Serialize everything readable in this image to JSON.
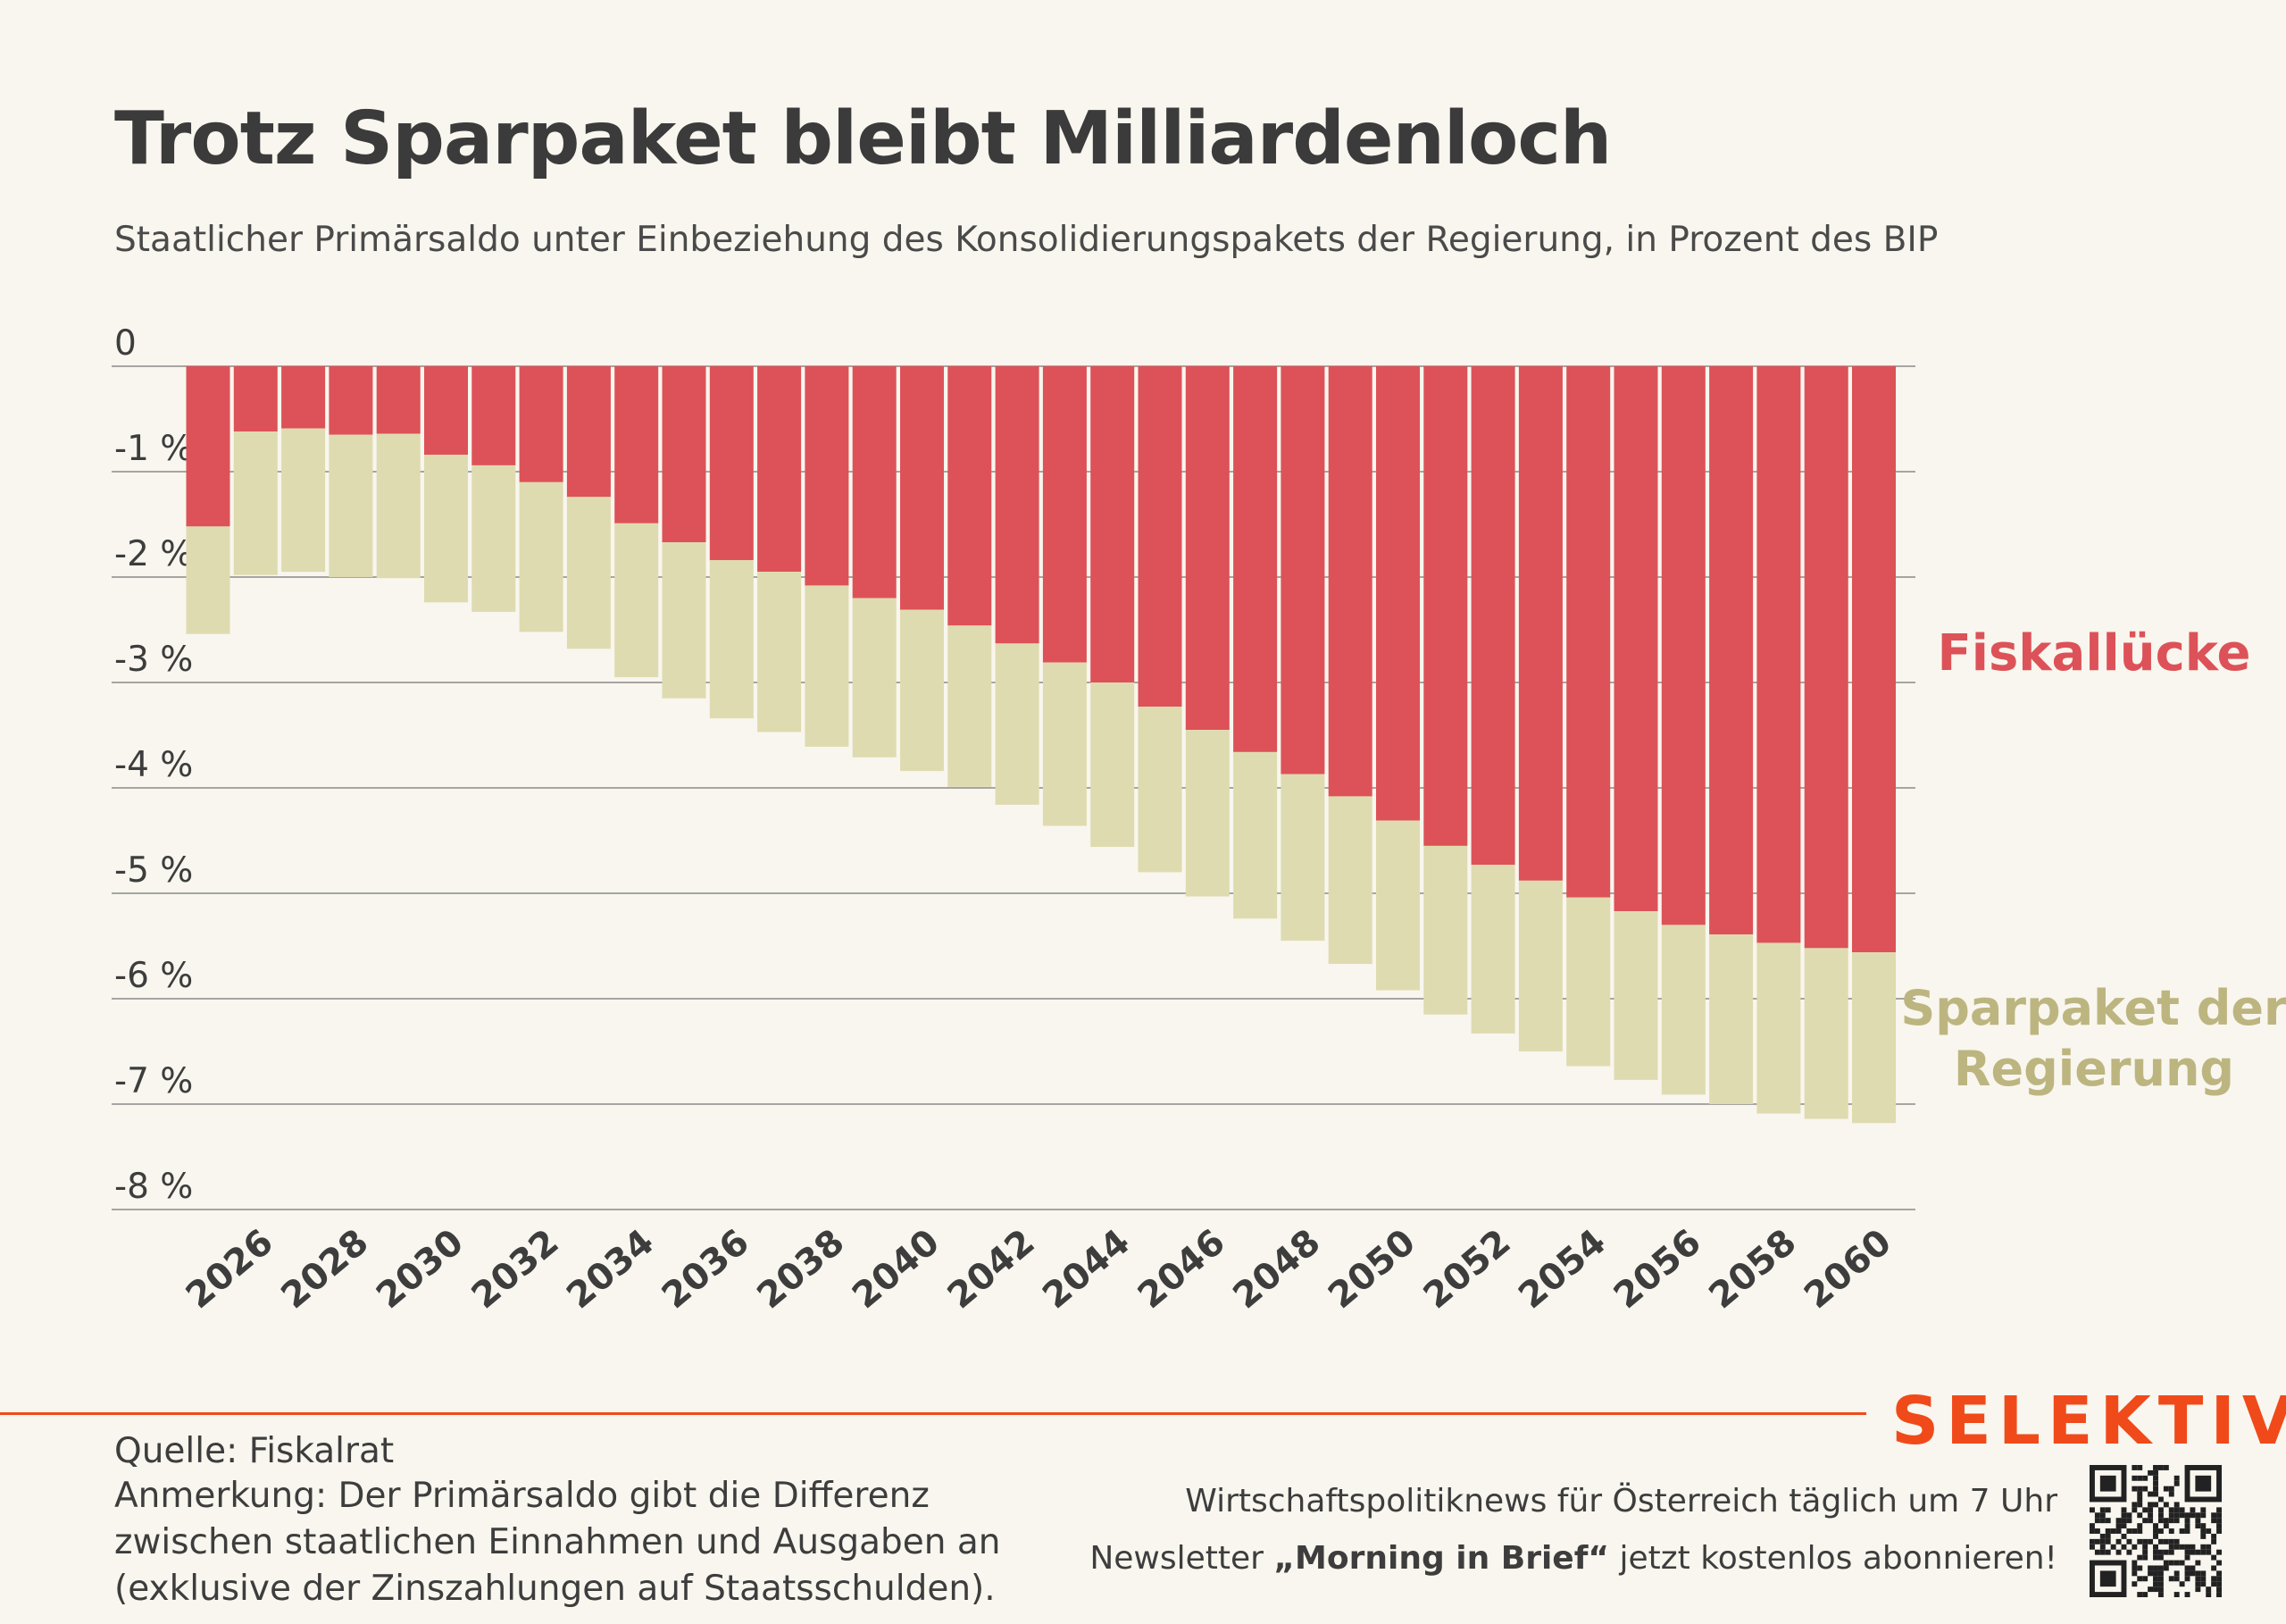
{
  "header": {
    "title": "Trotz Sparpaket bleibt Milliardenloch",
    "subtitle": "Staatlicher Primärsaldo unter Einbeziehung des Konsolidierungspakets der Regierung, in Prozent des BIP"
  },
  "chart_data": {
    "type": "bar",
    "stacked": true,
    "y_ticks": [
      "0",
      "-1 %",
      "-2 %",
      "-3 %",
      "-4 %",
      "-5 %",
      "-6 %",
      "-7 %",
      "-8 %"
    ],
    "ylim": [
      -8,
      0
    ],
    "x_tick_labels": [
      "2026",
      "2028",
      "2030",
      "2032",
      "2034",
      "2036",
      "2038",
      "2040",
      "2042",
      "2044",
      "2046",
      "2048",
      "2050",
      "2052",
      "2054",
      "2056",
      "2058",
      "2060"
    ],
    "categories": [
      2025,
      2026,
      2027,
      2028,
      2029,
      2030,
      2031,
      2032,
      2033,
      2034,
      2035,
      2036,
      2037,
      2038,
      2039,
      2040,
      2041,
      2042,
      2043,
      2044,
      2045,
      2046,
      2047,
      2048,
      2049,
      2050,
      2051,
      2052,
      2053,
      2054,
      2055,
      2056,
      2057,
      2058,
      2059,
      2060
    ],
    "series": [
      {
        "name": "Fiskallücke",
        "color": "#dc5258",
        "values": [
          -1.52,
          -0.62,
          -0.59,
          -0.65,
          -0.64,
          -0.84,
          -0.94,
          -1.1,
          -1.24,
          -1.49,
          -1.67,
          -1.84,
          -1.95,
          -2.08,
          -2.2,
          -2.31,
          -2.46,
          -2.63,
          -2.81,
          -3.0,
          -3.23,
          -3.45,
          -3.66,
          -3.87,
          -4.08,
          -4.31,
          -4.55,
          -4.73,
          -4.88,
          -5.04,
          -5.17,
          -5.3,
          -5.39,
          -5.47,
          -5.52,
          -5.56
        ]
      },
      {
        "name": "Sparpaket der Regierung",
        "color": "#dfdbb0",
        "values": [
          -1.02,
          -1.36,
          -1.36,
          -1.35,
          -1.37,
          -1.4,
          -1.39,
          -1.42,
          -1.44,
          -1.46,
          -1.48,
          -1.5,
          -1.52,
          -1.53,
          -1.51,
          -1.53,
          -1.53,
          -1.53,
          -1.55,
          -1.56,
          -1.57,
          -1.58,
          -1.58,
          -1.58,
          -1.59,
          -1.61,
          -1.6,
          -1.6,
          -1.62,
          -1.6,
          -1.6,
          -1.61,
          -1.61,
          -1.62,
          -1.62,
          -1.62
        ]
      }
    ],
    "legend_labels": {
      "gap": "Fiskallücke",
      "package_line1": "Sparpaket der",
      "package_line2": "Regierung"
    }
  },
  "footer": {
    "source": "Quelle: Fiskalrat",
    "note_lines": [
      "Anmerkung: Der Primärsaldo gibt die Differenz",
      "zwischen staatlichen Einnahmen und Ausgaben an",
      "(exklusive der Zinszahlungen auf Staatsschulden)."
    ],
    "brand": "SELEKTIV",
    "promo_line1": "Wirtschaftspolitiknews für Österreich täglich um 7 Uhr",
    "promo_line2_pre": "Newsletter ",
    "promo_line2_bold": "„Morning in Brief“",
    "promo_line2_post": " jetzt kostenlos abonnieren!"
  }
}
